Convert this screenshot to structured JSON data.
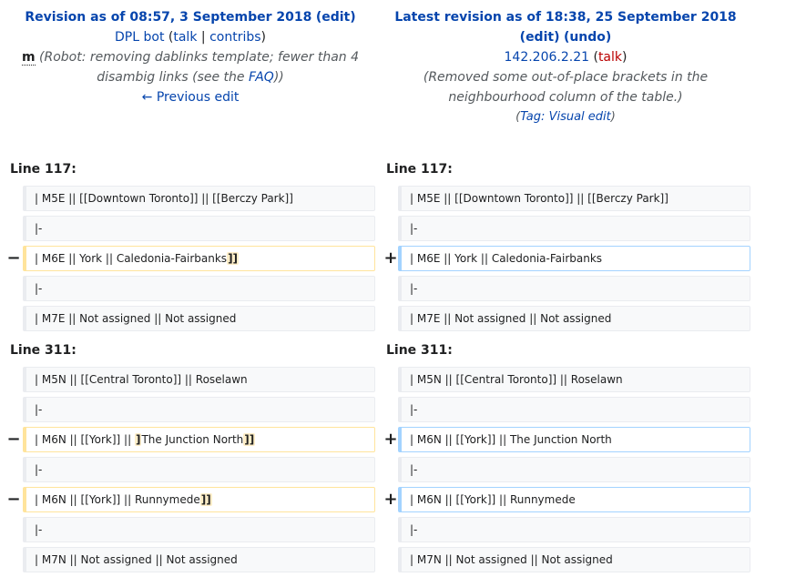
{
  "left_header": {
    "title_prefix": "Revision as of 08:57, 3 September 2018",
    "edit_link": "edit",
    "user": "DPL bot",
    "talk": "talk",
    "contribs": "contribs",
    "minor_flag": "m",
    "summary_1": "(Robot: removing dablinks template; fewer than 4",
    "summary_2": "disambig links (see the",
    "faq_link": "FAQ",
    "summary_end": "))",
    "prev_edit": "← Previous edit"
  },
  "right_header": {
    "title_prefix": "Latest revision as of 18:38, 25 September 2018",
    "edit_link": "edit",
    "undo_link": "undo",
    "ip": "142.206.2.21",
    "talk": "talk",
    "summary_1": "(Removed some out-of-place brackets in the",
    "summary_2": "neighbourhood column of the table.)",
    "tag_prefix": "Tag:",
    "tag_link": "Visual edit"
  },
  "blocks": [
    {
      "left_label": "Line 117:",
      "right_label": "Line 117:",
      "rows": [
        {
          "type": "context",
          "left": "| M5E || [[Downtown Toronto]] || [[Berczy Park]]",
          "right": "| M5E || [[Downtown Toronto]] || [[Berczy Park]]"
        },
        {
          "type": "context",
          "left": "|-",
          "right": "|-"
        },
        {
          "type": "change",
          "left": "| M6E || York || Caledonia-Fairbanks",
          "left_del": "]]",
          "right": "| M6E || York || Caledonia-Fairbanks"
        },
        {
          "type": "context",
          "left": "|-",
          "right": "|-"
        },
        {
          "type": "context",
          "left": "| M7E || Not assigned || Not assigned",
          "right": "| M7E || Not assigned || Not assigned"
        }
      ]
    },
    {
      "left_label": "Line 311:",
      "right_label": "Line 311:",
      "rows": [
        {
          "type": "context",
          "left": "| M5N || [[Central Toronto]] || Roselawn",
          "right": "| M5N || [[Central Toronto]] || Roselawn"
        },
        {
          "type": "context",
          "left": "|-",
          "right": "|-"
        },
        {
          "type": "change2",
          "left_a": "| M6N || [[York]] || ",
          "left_del_a": "]",
          "left_b": "The Junction North",
          "left_del_b": "]]",
          "right": "| M6N || [[York]] || The Junction North"
        },
        {
          "type": "context",
          "left": "|-",
          "right": "|-"
        },
        {
          "type": "change",
          "left": "| M6N || [[York]] || Runnymede",
          "left_del": "]]",
          "right": "| M6N || [[York]] || Runnymede"
        },
        {
          "type": "context",
          "left": "|-",
          "right": "|-"
        },
        {
          "type": "context",
          "left": "| M7N || Not assigned || Not assigned",
          "right": "| M7N || Not assigned || Not assigned"
        }
      ]
    }
  ],
  "markers": {
    "minus": "−",
    "plus": "+"
  }
}
